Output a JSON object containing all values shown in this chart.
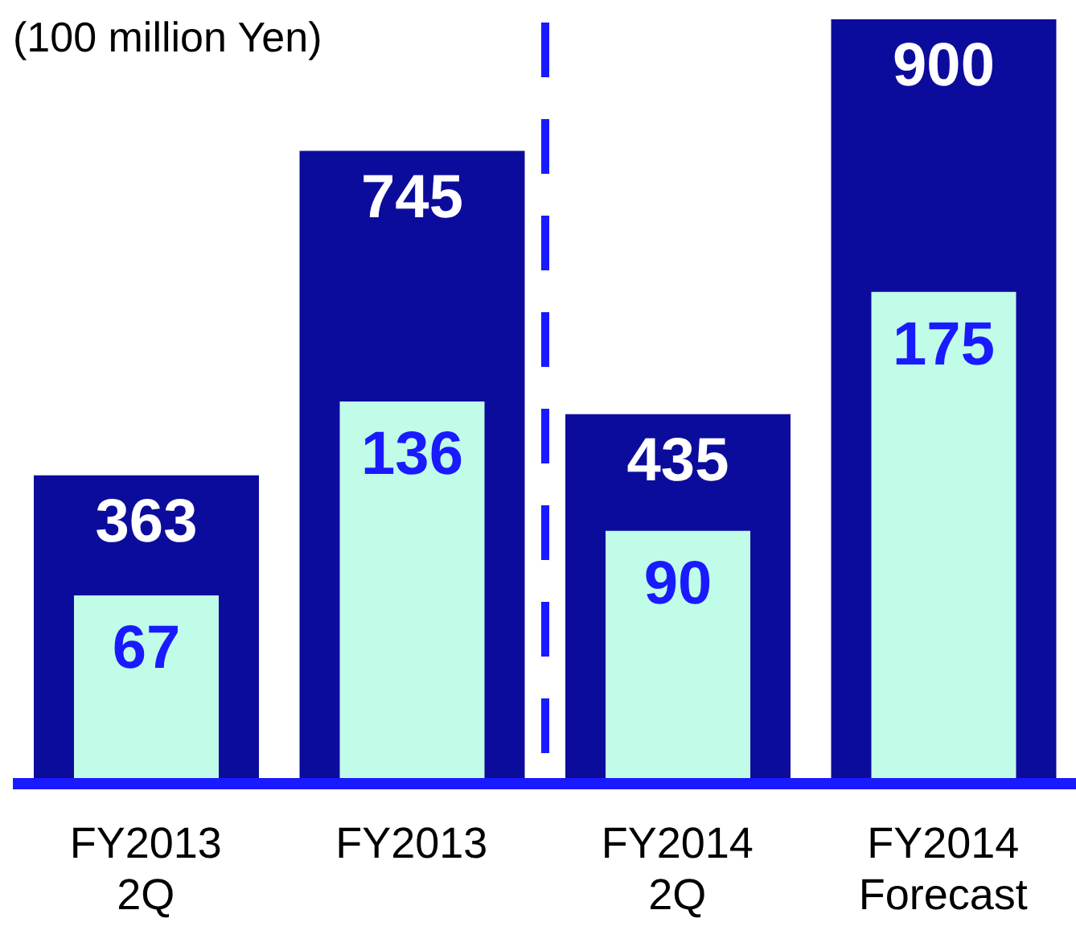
{
  "chart_data": {
    "type": "bar",
    "ylabel": "(100 million Yen)",
    "categories": [
      "FY2013\n2Q",
      "FY2013",
      "FY2014\n2Q",
      "FY2014\nForecast"
    ],
    "series": [
      {
        "color": "#0c0c9c",
        "values": [
          363,
          745,
          435,
          900
        ]
      },
      {
        "color": "#c0fce8",
        "values": [
          67,
          136,
          90,
          175
        ],
        "axis": "y2"
      }
    ],
    "ylim": [
      0,
      900
    ],
    "y2lim": [
      0,
      272
    ],
    "data_labels": true
  }
}
